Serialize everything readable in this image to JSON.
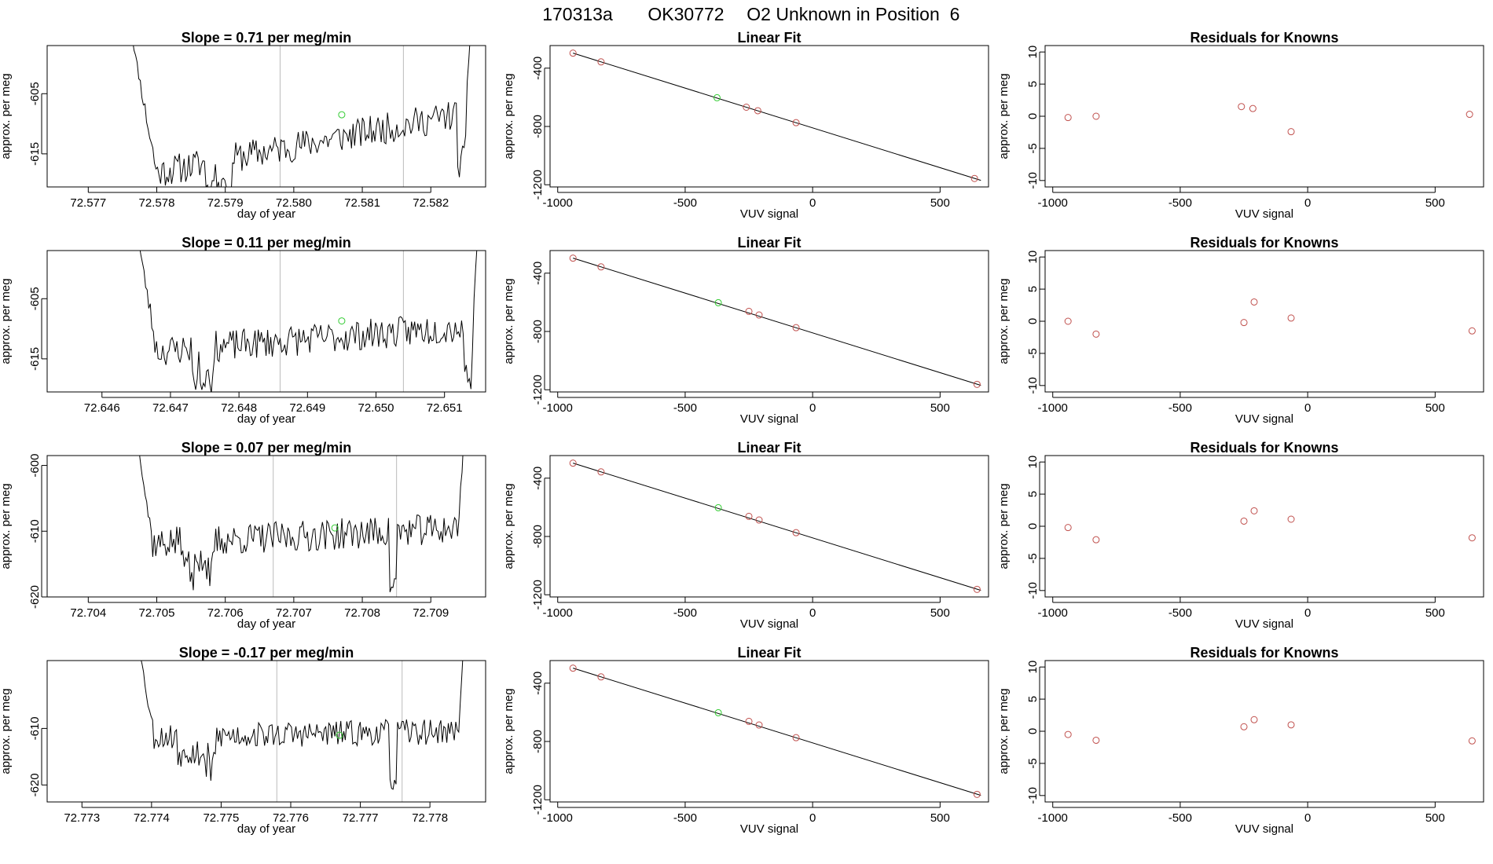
{
  "page_title": {
    "id": "170313a",
    "sample": "OK30772",
    "label": "O2 Unknown in Position",
    "position": "6"
  },
  "colors": {
    "line": "#000000",
    "known": "#c0504d",
    "unknown": "#33cc33",
    "vline": "#bbbbbb"
  },
  "chart_data": [
    {
      "type": "line",
      "title_prefix": "Slope =",
      "slope": "0.71",
      "title_suffix": "per meg/min",
      "xlabel": "day of year",
      "ylabel": "approx. per meg",
      "xlim": [
        72.5764,
        72.5828
      ],
      "ylim": [
        -620.5,
        -597
      ],
      "xticks": [
        72.577,
        72.578,
        72.579,
        72.58,
        72.581,
        72.582
      ],
      "xtick_labels": [
        "72.577",
        "72.578",
        "72.579",
        "72.580",
        "72.581",
        "72.582"
      ],
      "yticks": [
        -605,
        -615
      ],
      "ytick_labels": [
        "-605",
        "-615"
      ],
      "vlines": [
        72.5798,
        72.5816
      ],
      "unknown_point": {
        "x": 72.5807,
        "y": -608.5
      },
      "trace": {
        "x_start": 72.5776,
        "x_end": 72.5826,
        "points": 220,
        "rise_frac": 0.08,
        "fall_frac": 0.98,
        "drop_frac": 0.97,
        "start_level": -619,
        "end_level": -608,
        "noise": 2.6,
        "seed": 11,
        "dips": [
          0.22,
          0.3
        ]
      }
    },
    {
      "type": "scatter",
      "title": "Linear Fit",
      "xlabel": "VUV signal",
      "ylabel": "approx. per meg",
      "xlim": [
        -1030,
        690
      ],
      "ylim": [
        -1215,
        -245
      ],
      "xticks": [
        -1000,
        -500,
        0,
        500
      ],
      "xtick_labels": [
        "-1000",
        "-500",
        "0",
        "500"
      ],
      "yticks": [
        -400,
        -800,
        -1200
      ],
      "ytick_labels": [
        "-400",
        "-800",
        "-1200"
      ],
      "fit_line": {
        "x": [
          -940,
          660
        ],
        "y": [
          -297,
          -1170
        ]
      },
      "known_points": {
        "x": [
          -940,
          -830,
          -260,
          -215,
          -65,
          635
        ],
        "y": [
          -297,
          -357,
          -668,
          -692,
          -774,
          -1157
        ]
      },
      "unknown_points": {
        "x": [
          -375
        ],
        "y": [
          -603
        ]
      }
    },
    {
      "type": "scatter",
      "title": "Residuals for Knowns",
      "xlabel": "VUV signal",
      "ylabel": "approx. per meg",
      "xlim": [
        -1030,
        690
      ],
      "ylim": [
        -11,
        11
      ],
      "xticks": [
        -1000,
        -500,
        0,
        500
      ],
      "xtick_labels": [
        "-1000",
        "-500",
        "0",
        "500"
      ],
      "yticks": [
        10,
        5,
        0,
        -5,
        -10
      ],
      "ytick_labels": [
        "10",
        "5",
        "0",
        "-5",
        "-10"
      ],
      "points": {
        "x": [
          -940,
          -830,
          -260,
          -215,
          -65,
          635
        ],
        "y": [
          -0.2,
          0,
          1.5,
          1.2,
          -2.4,
          0.3
        ]
      }
    },
    {
      "type": "line",
      "title_prefix": "Slope =",
      "slope": "0.11",
      "title_suffix": "per meg/min",
      "xlabel": "day of year",
      "ylabel": "approx. per meg",
      "xlim": [
        72.6452,
        72.6516
      ],
      "ylim": [
        -620.5,
        -597
      ],
      "xticks": [
        72.646,
        72.647,
        72.648,
        72.649,
        72.65,
        72.651
      ],
      "xtick_labels": [
        "72.646",
        "72.647",
        "72.648",
        "72.649",
        "72.650",
        "72.651"
      ],
      "yticks": [
        -605,
        -615
      ],
      "ytick_labels": [
        "-605",
        "-615"
      ],
      "vlines": [
        72.6486,
        72.6504
      ],
      "unknown_point": {
        "x": 72.6495,
        "y": -608.7
      },
      "trace": {
        "x_start": 72.6465,
        "x_end": 72.6515,
        "points": 220,
        "rise_frac": 0.06,
        "fall_frac": 0.98,
        "drop_frac": 0.97,
        "start_level": -614,
        "end_level": -609.5,
        "noise": 2.6,
        "seed": 23,
        "dips": [
          0.16,
          0.23
        ]
      }
    },
    {
      "type": "scatter",
      "title": "Linear Fit",
      "xlabel": "VUV signal",
      "ylabel": "approx. per meg",
      "xlim": [
        -1030,
        690
      ],
      "ylim": [
        -1215,
        -245
      ],
      "xticks": [
        -1000,
        -500,
        0,
        500
      ],
      "xtick_labels": [
        "-1000",
        "-500",
        "0",
        "500"
      ],
      "yticks": [
        -400,
        -800,
        -1200
      ],
      "ytick_labels": [
        "-400",
        "-800",
        "-1200"
      ],
      "fit_line": {
        "x": [
          -940,
          660
        ],
        "y": [
          -297,
          -1170
        ]
      },
      "known_points": {
        "x": [
          -940,
          -830,
          -250,
          -210,
          -65,
          645
        ],
        "y": [
          -297,
          -357,
          -662,
          -687,
          -774,
          -1163
        ]
      },
      "unknown_points": {
        "x": [
          -370
        ],
        "y": [
          -603
        ]
      }
    },
    {
      "type": "scatter",
      "title": "Residuals for Knowns",
      "xlabel": "VUV signal",
      "ylabel": "approx. per meg",
      "xlim": [
        -1030,
        690
      ],
      "ylim": [
        -11,
        11
      ],
      "xticks": [
        -1000,
        -500,
        0,
        500
      ],
      "xtick_labels": [
        "-1000",
        "-500",
        "0",
        "500"
      ],
      "yticks": [
        10,
        5,
        0,
        -5,
        -10
      ],
      "ytick_labels": [
        "10",
        "5",
        "0",
        "-5",
        "-10"
      ],
      "points": {
        "x": [
          -940,
          -830,
          -250,
          -210,
          -65,
          645
        ],
        "y": [
          0,
          -2,
          -0.2,
          3,
          0.5,
          -1.5
        ]
      }
    },
    {
      "type": "line",
      "title_prefix": "Slope =",
      "slope": "0.07",
      "title_suffix": "per meg/min",
      "xlabel": "day of year",
      "ylabel": "approx. per meg",
      "xlim": [
        72.7034,
        72.7098
      ],
      "ylim": [
        -620,
        -598.5
      ],
      "xticks": [
        72.704,
        72.705,
        72.706,
        72.707,
        72.708,
        72.709
      ],
      "xtick_labels": [
        "72.704",
        "72.705",
        "72.706",
        "72.707",
        "72.708",
        "72.709"
      ],
      "yticks": [
        -600,
        -610,
        -620
      ],
      "ytick_labels": [
        "-600",
        "-610",
        "-620"
      ],
      "vlines": [
        72.7067,
        72.7085
      ],
      "unknown_point": {
        "x": 72.7076,
        "y": -609.5
      },
      "trace": {
        "x_start": 72.7047,
        "x_end": 72.7095,
        "points": 220,
        "rise_frac": 0.05,
        "fall_frac": 0.98,
        "drop_frac": 0.78,
        "start_level": -612,
        "end_level": -609.5,
        "noise": 2.4,
        "seed": 37,
        "dips": [
          0.14,
          0.24
        ]
      }
    },
    {
      "type": "scatter",
      "title": "Linear Fit",
      "xlabel": "VUV signal",
      "ylabel": "approx. per meg",
      "xlim": [
        -1030,
        690
      ],
      "ylim": [
        -1215,
        -245
      ],
      "xticks": [
        -1000,
        -500,
        0,
        500
      ],
      "xtick_labels": [
        "-1000",
        "-500",
        "0",
        "500"
      ],
      "yticks": [
        -400,
        -800,
        -1200
      ],
      "ytick_labels": [
        "-400",
        "-800",
        "-1200"
      ],
      "fit_line": {
        "x": [
          -940,
          660
        ],
        "y": [
          -297,
          -1170
        ]
      },
      "known_points": {
        "x": [
          -940,
          -830,
          -250,
          -210,
          -65,
          645
        ],
        "y": [
          -297,
          -357,
          -662,
          -687,
          -774,
          -1163
        ]
      },
      "unknown_points": {
        "x": [
          -370
        ],
        "y": [
          -603
        ]
      }
    },
    {
      "type": "scatter",
      "title": "Residuals for Knowns",
      "xlabel": "VUV signal",
      "ylabel": "approx. per meg",
      "xlim": [
        -1030,
        690
      ],
      "ylim": [
        -11,
        11
      ],
      "xticks": [
        -1000,
        -500,
        0,
        500
      ],
      "xtick_labels": [
        "-1000",
        "-500",
        "0",
        "500"
      ],
      "yticks": [
        10,
        5,
        0,
        -5,
        -10
      ],
      "ytick_labels": [
        "10",
        "5",
        "0",
        "-5",
        "-10"
      ],
      "points": {
        "x": [
          -940,
          -830,
          -250,
          -210,
          -65,
          645
        ],
        "y": [
          -0.2,
          -2.1,
          0.8,
          2.4,
          1.1,
          -1.8
        ]
      }
    },
    {
      "type": "line",
      "title_prefix": "Slope =",
      "slope": "-0.17",
      "title_suffix": "per meg/min",
      "xlabel": "day of year",
      "ylabel": "approx. per meg",
      "xlim": [
        72.7725,
        72.7788
      ],
      "ylim": [
        -623,
        -598
      ],
      "xticks": [
        72.773,
        72.774,
        72.775,
        72.776,
        72.777,
        72.778
      ],
      "xtick_labels": [
        "72.773",
        "72.774",
        "72.775",
        "72.776",
        "72.777",
        "72.778"
      ],
      "yticks": [
        -610,
        -620
      ],
      "ytick_labels": [
        "-610",
        "-620"
      ],
      "vlines": [
        72.7758,
        72.7776
      ],
      "unknown_point": {
        "x": 72.7767,
        "y": -611.2
      },
      "trace": {
        "x_start": 72.7738,
        "x_end": 72.7785,
        "points": 220,
        "rise_frac": 0.05,
        "fall_frac": 0.98,
        "drop_frac": 0.78,
        "start_level": -611.5,
        "end_level": -610.5,
        "noise": 2.3,
        "seed": 53,
        "dips": [
          0.12,
          0.24
        ]
      }
    },
    {
      "type": "scatter",
      "title": "Linear Fit",
      "xlabel": "VUV signal",
      "ylabel": "approx. per meg",
      "xlim": [
        -1030,
        690
      ],
      "ylim": [
        -1215,
        -245
      ],
      "xticks": [
        -1000,
        -500,
        0,
        500
      ],
      "xtick_labels": [
        "-1000",
        "-500",
        "0",
        "500"
      ],
      "yticks": [
        -400,
        -800,
        -1200
      ],
      "ytick_labels": [
        "-400",
        "-800",
        "-1200"
      ],
      "fit_line": {
        "x": [
          -940,
          660
        ],
        "y": [
          -297,
          -1170
        ]
      },
      "known_points": {
        "x": [
          -940,
          -830,
          -250,
          -210,
          -65,
          645
        ],
        "y": [
          -297,
          -357,
          -662,
          -687,
          -774,
          -1163
        ]
      },
      "unknown_points": {
        "x": [
          -370
        ],
        "y": [
          -603
        ]
      }
    },
    {
      "type": "scatter",
      "title": "Residuals for Knowns",
      "xlabel": "VUV signal",
      "ylabel": "approx. per meg",
      "xlim": [
        -1030,
        690
      ],
      "ylim": [
        -11,
        11
      ],
      "xticks": [
        -1000,
        -500,
        0,
        500
      ],
      "xtick_labels": [
        "-1000",
        "-500",
        "0",
        "500"
      ],
      "yticks": [
        10,
        5,
        0,
        -5,
        -10
      ],
      "ytick_labels": [
        "10",
        "5",
        "0",
        "-5",
        "-10"
      ],
      "points": {
        "x": [
          -940,
          -830,
          -250,
          -210,
          -65,
          645
        ],
        "y": [
          -0.5,
          -1.4,
          0.7,
          1.8,
          1.0,
          -1.5
        ]
      }
    }
  ]
}
